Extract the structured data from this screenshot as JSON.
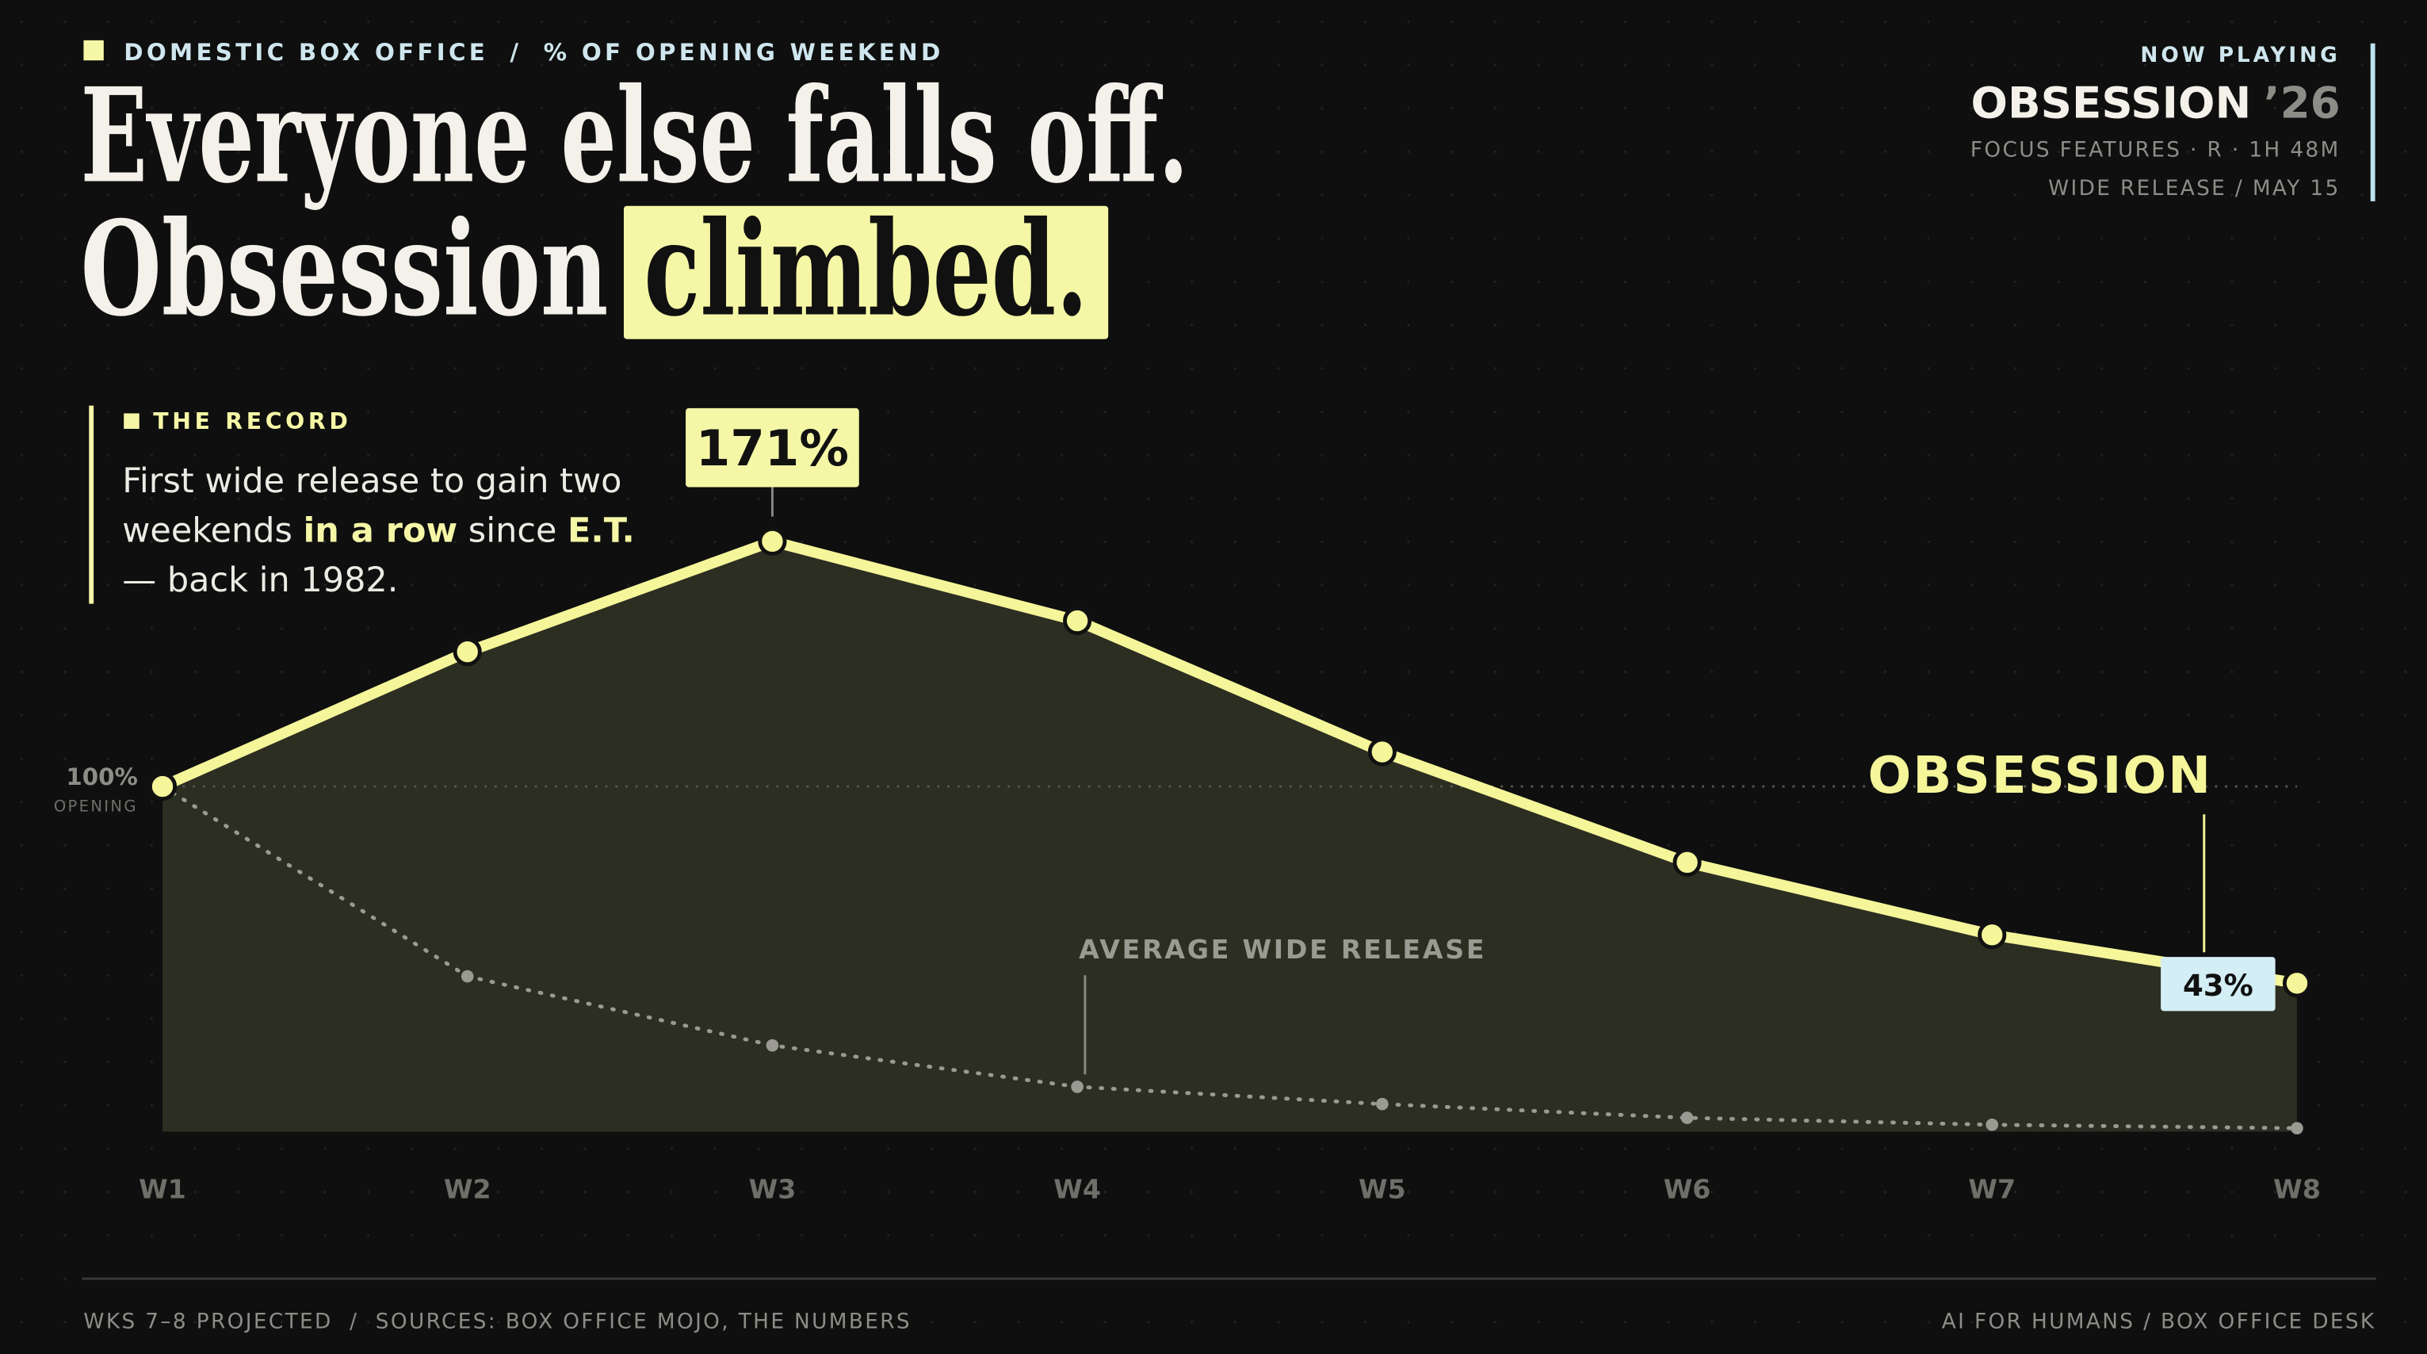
{
  "header": {
    "kicker": "DOMESTIC BOX OFFICE",
    "kicker_sep": "/",
    "kicker_sub": "% OF OPENING WEEKEND",
    "title_line1": "Everyone else falls off.",
    "title_line2": "Obsession",
    "title_highlight": "climbed."
  },
  "now_playing": {
    "label": "NOW PLAYING",
    "film": "OBSESSION",
    "year": "’26",
    "meta": "FOCUS FEATURES · R · 1H 48M",
    "release": "WIDE RELEASE / MAY 15"
  },
  "record": {
    "label": "THE RECORD",
    "line1": "First wide release to gain two",
    "line2a": "weekends",
    "line2b": "in a row",
    "line2c": "since",
    "line2d": "E.T.",
    "line3": "— back in 1982."
  },
  "chart_data": {
    "type": "line",
    "categories": [
      "W1",
      "W2",
      "W3",
      "W4",
      "W5",
      "W6",
      "W7",
      "W8"
    ],
    "ylim": [
      0,
      180
    ],
    "yticks": [
      {
        "value": 100,
        "label": "100%"
      }
    ],
    "ytick_sublabel": "OPENING",
    "series": [
      {
        "name": "OBSESSION",
        "color": "#f5f59a",
        "values": [
          100,
          139,
          171,
          148,
          110,
          78,
          57,
          43
        ],
        "value_labels": [
          null,
          null,
          "171%",
          null,
          null,
          null,
          null,
          "43%"
        ]
      },
      {
        "name": "AVERAGE WIDE RELEASE",
        "color": "#9a9a92",
        "values": [
          100,
          45,
          25,
          13,
          8,
          4,
          2,
          1
        ]
      }
    ]
  },
  "footer": {
    "left": "WKS 7–8 PROJECTED  /  SOURCES: BOX OFFICE MOJO, THE NUMBERS",
    "right": "AI FOR HUMANS / BOX OFFICE DESK"
  }
}
